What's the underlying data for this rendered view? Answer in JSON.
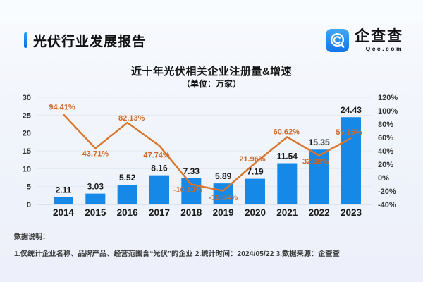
{
  "header": {
    "title": "光伏行业发展报告",
    "logo": {
      "brand": "企查查",
      "domain": "Qcc.com",
      "icon": "qcc-magnifier-icon"
    }
  },
  "chart": {
    "title": "近十年光伏相关企业注册量&增速",
    "subtitle": "（单位：万家）"
  },
  "chart_data": {
    "type": "bar+line",
    "categories": [
      "2014",
      "2015",
      "2016",
      "2017",
      "2018",
      "2019",
      "2020",
      "2021",
      "2022",
      "2023"
    ],
    "series": [
      {
        "name": "注册量（万家）",
        "type": "bar",
        "axis": "left",
        "values": [
          2.11,
          3.03,
          5.52,
          8.16,
          7.33,
          5.89,
          7.19,
          11.54,
          15.35,
          24.43
        ],
        "labels": [
          "2.11",
          "3.03",
          "5.52",
          "8.16",
          "7.33",
          "5.89",
          "7.19",
          "11.54",
          "15.35",
          "24.43"
        ],
        "color": "#1588e8"
      },
      {
        "name": "增速",
        "type": "line",
        "axis": "right",
        "values": [
          94.41,
          43.71,
          82.13,
          47.74,
          -10.1,
          -19.64,
          21.96,
          60.62,
          32.98,
          59.15
        ],
        "labels": [
          "94.41%",
          "43.71%",
          "82.13%",
          "47.74%",
          "-10.10%",
          "-19.64%",
          "21.96%",
          "60.62%",
          "32.98%",
          "59.15%"
        ],
        "color": "#d9742a",
        "label_color": "#cb6a2e"
      }
    ],
    "left_axis": {
      "min": 0,
      "max": 30,
      "step": 5,
      "ticks": [
        "30",
        "25",
        "20",
        "15",
        "10",
        "5",
        "0"
      ]
    },
    "right_axis": {
      "min": -40,
      "max": 120,
      "step": 20,
      "ticks": [
        "120%",
        "100%",
        "80%",
        "60%",
        "40%",
        "20%",
        "0%",
        "-20%",
        "-40%"
      ]
    },
    "grid": true,
    "legend": "none"
  },
  "footnote": {
    "heading": "数据说明：",
    "line": "1.仅统计企业名称、品牌产品、经营范围含“光伏”的企业  2.统计时间：2024/05/22  3.数据来源：企查查"
  },
  "colors": {
    "bar": "#1588e8",
    "line": "#d9742a",
    "line_label": "#cb6a2e",
    "grid": "#e3e8f0",
    "axis_line": "#ccd4e0",
    "text_dark": "#1a1a1a",
    "tick_text": "#333333",
    "accent": "#1285ee"
  }
}
